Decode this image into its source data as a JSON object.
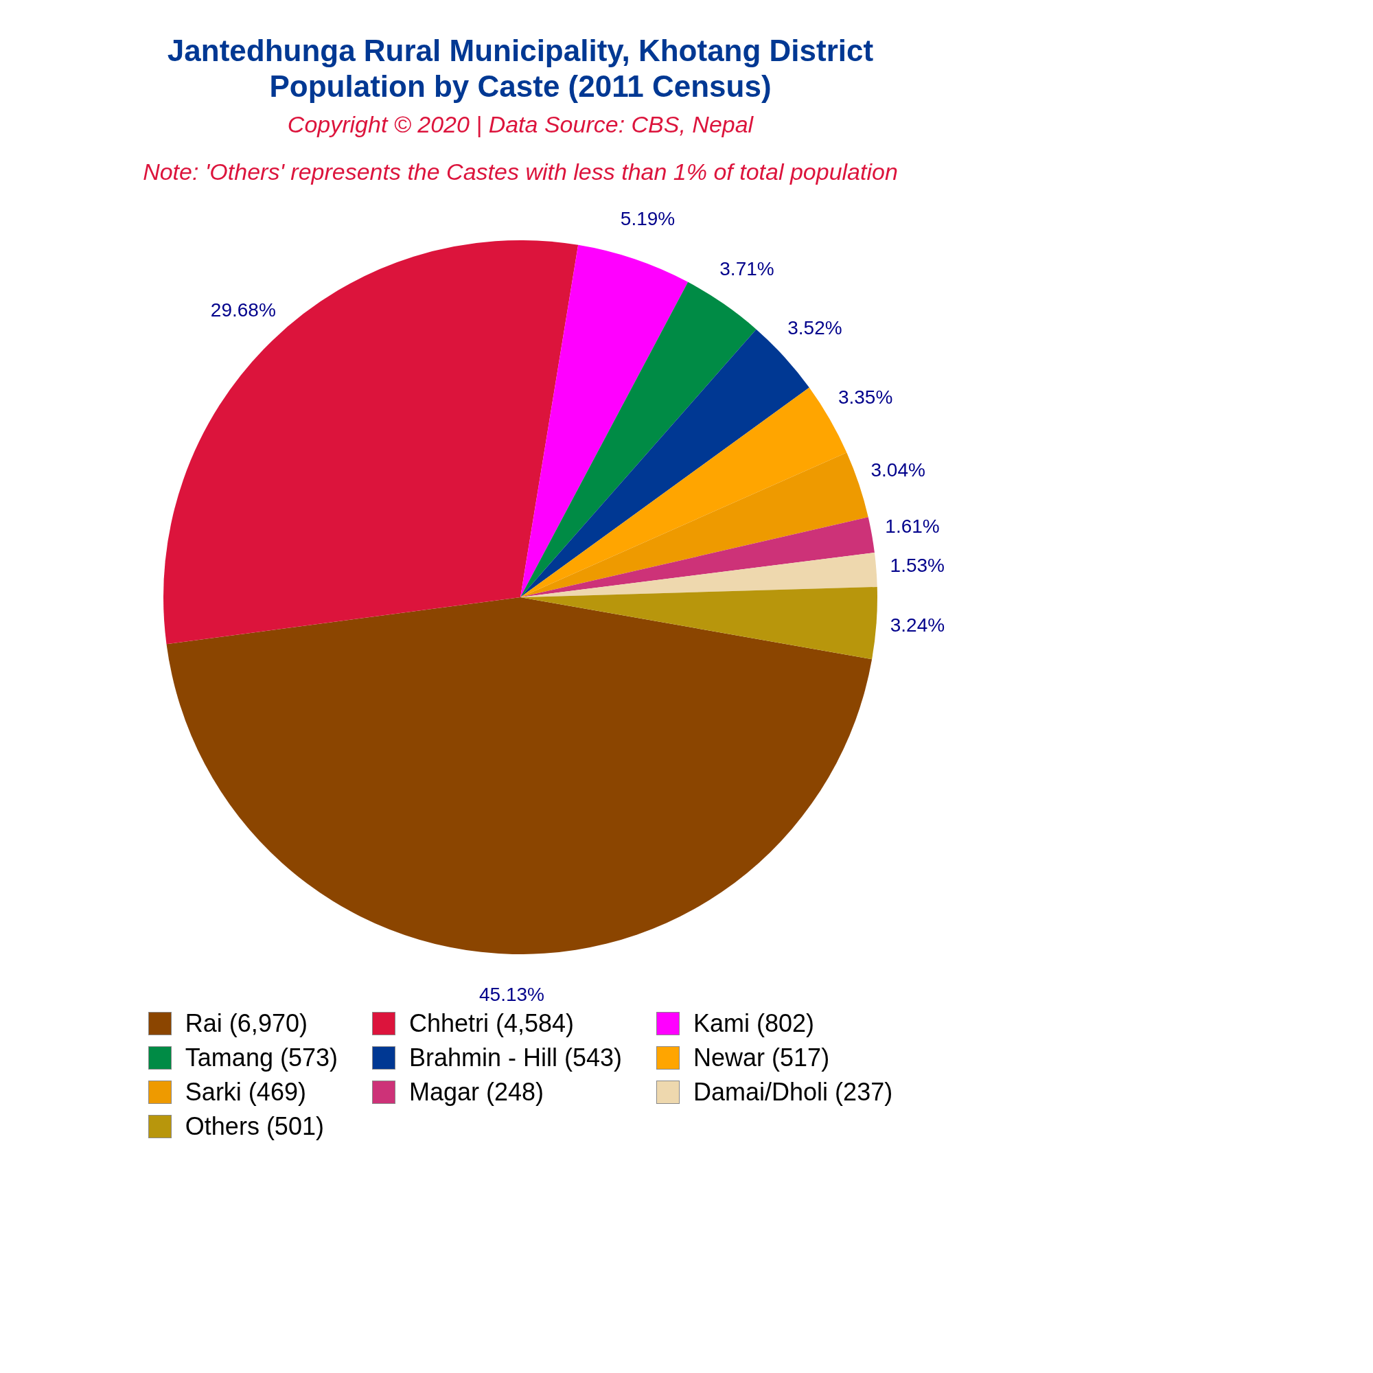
{
  "chart_data": {
    "type": "pie",
    "title": "Jantedhunga Rural Municipality, Khotang District\nPopulation by Caste (2011 Census)",
    "subtitle": "Copyright © 2020 | Data Source: CBS, Nepal",
    "annotations": [
      "Note: 'Others' represents the Castes with less than 1% of total population"
    ],
    "categories": [
      "Rai (6,970)",
      "Chhetri (4,584)",
      "Kami (802)",
      "Tamang (573)",
      "Brahmin - Hill (543)",
      "Newar (517)",
      "Sarki (469)",
      "Magar (248)",
      "Damai/Dholi (237)",
      "Others (501)"
    ],
    "values": [
      45.13,
      29.68,
      5.19,
      3.71,
      3.52,
      3.35,
      3.04,
      1.61,
      1.53,
      3.24
    ],
    "colors": [
      "#8b4500",
      "#dc143c",
      "#ff00ff",
      "#008b45",
      "#003893",
      "#ffa500",
      "#ee9a00",
      "#cd3278",
      "#eed8ae",
      "#b8960c"
    ],
    "value_labels": [
      "45.13%",
      "29.68%",
      "5.19%",
      "3.71%",
      "3.52%",
      "3.35%",
      "3.04%",
      "1.61%",
      "1.53%",
      "3.24%"
    ],
    "legend": "bottom"
  }
}
